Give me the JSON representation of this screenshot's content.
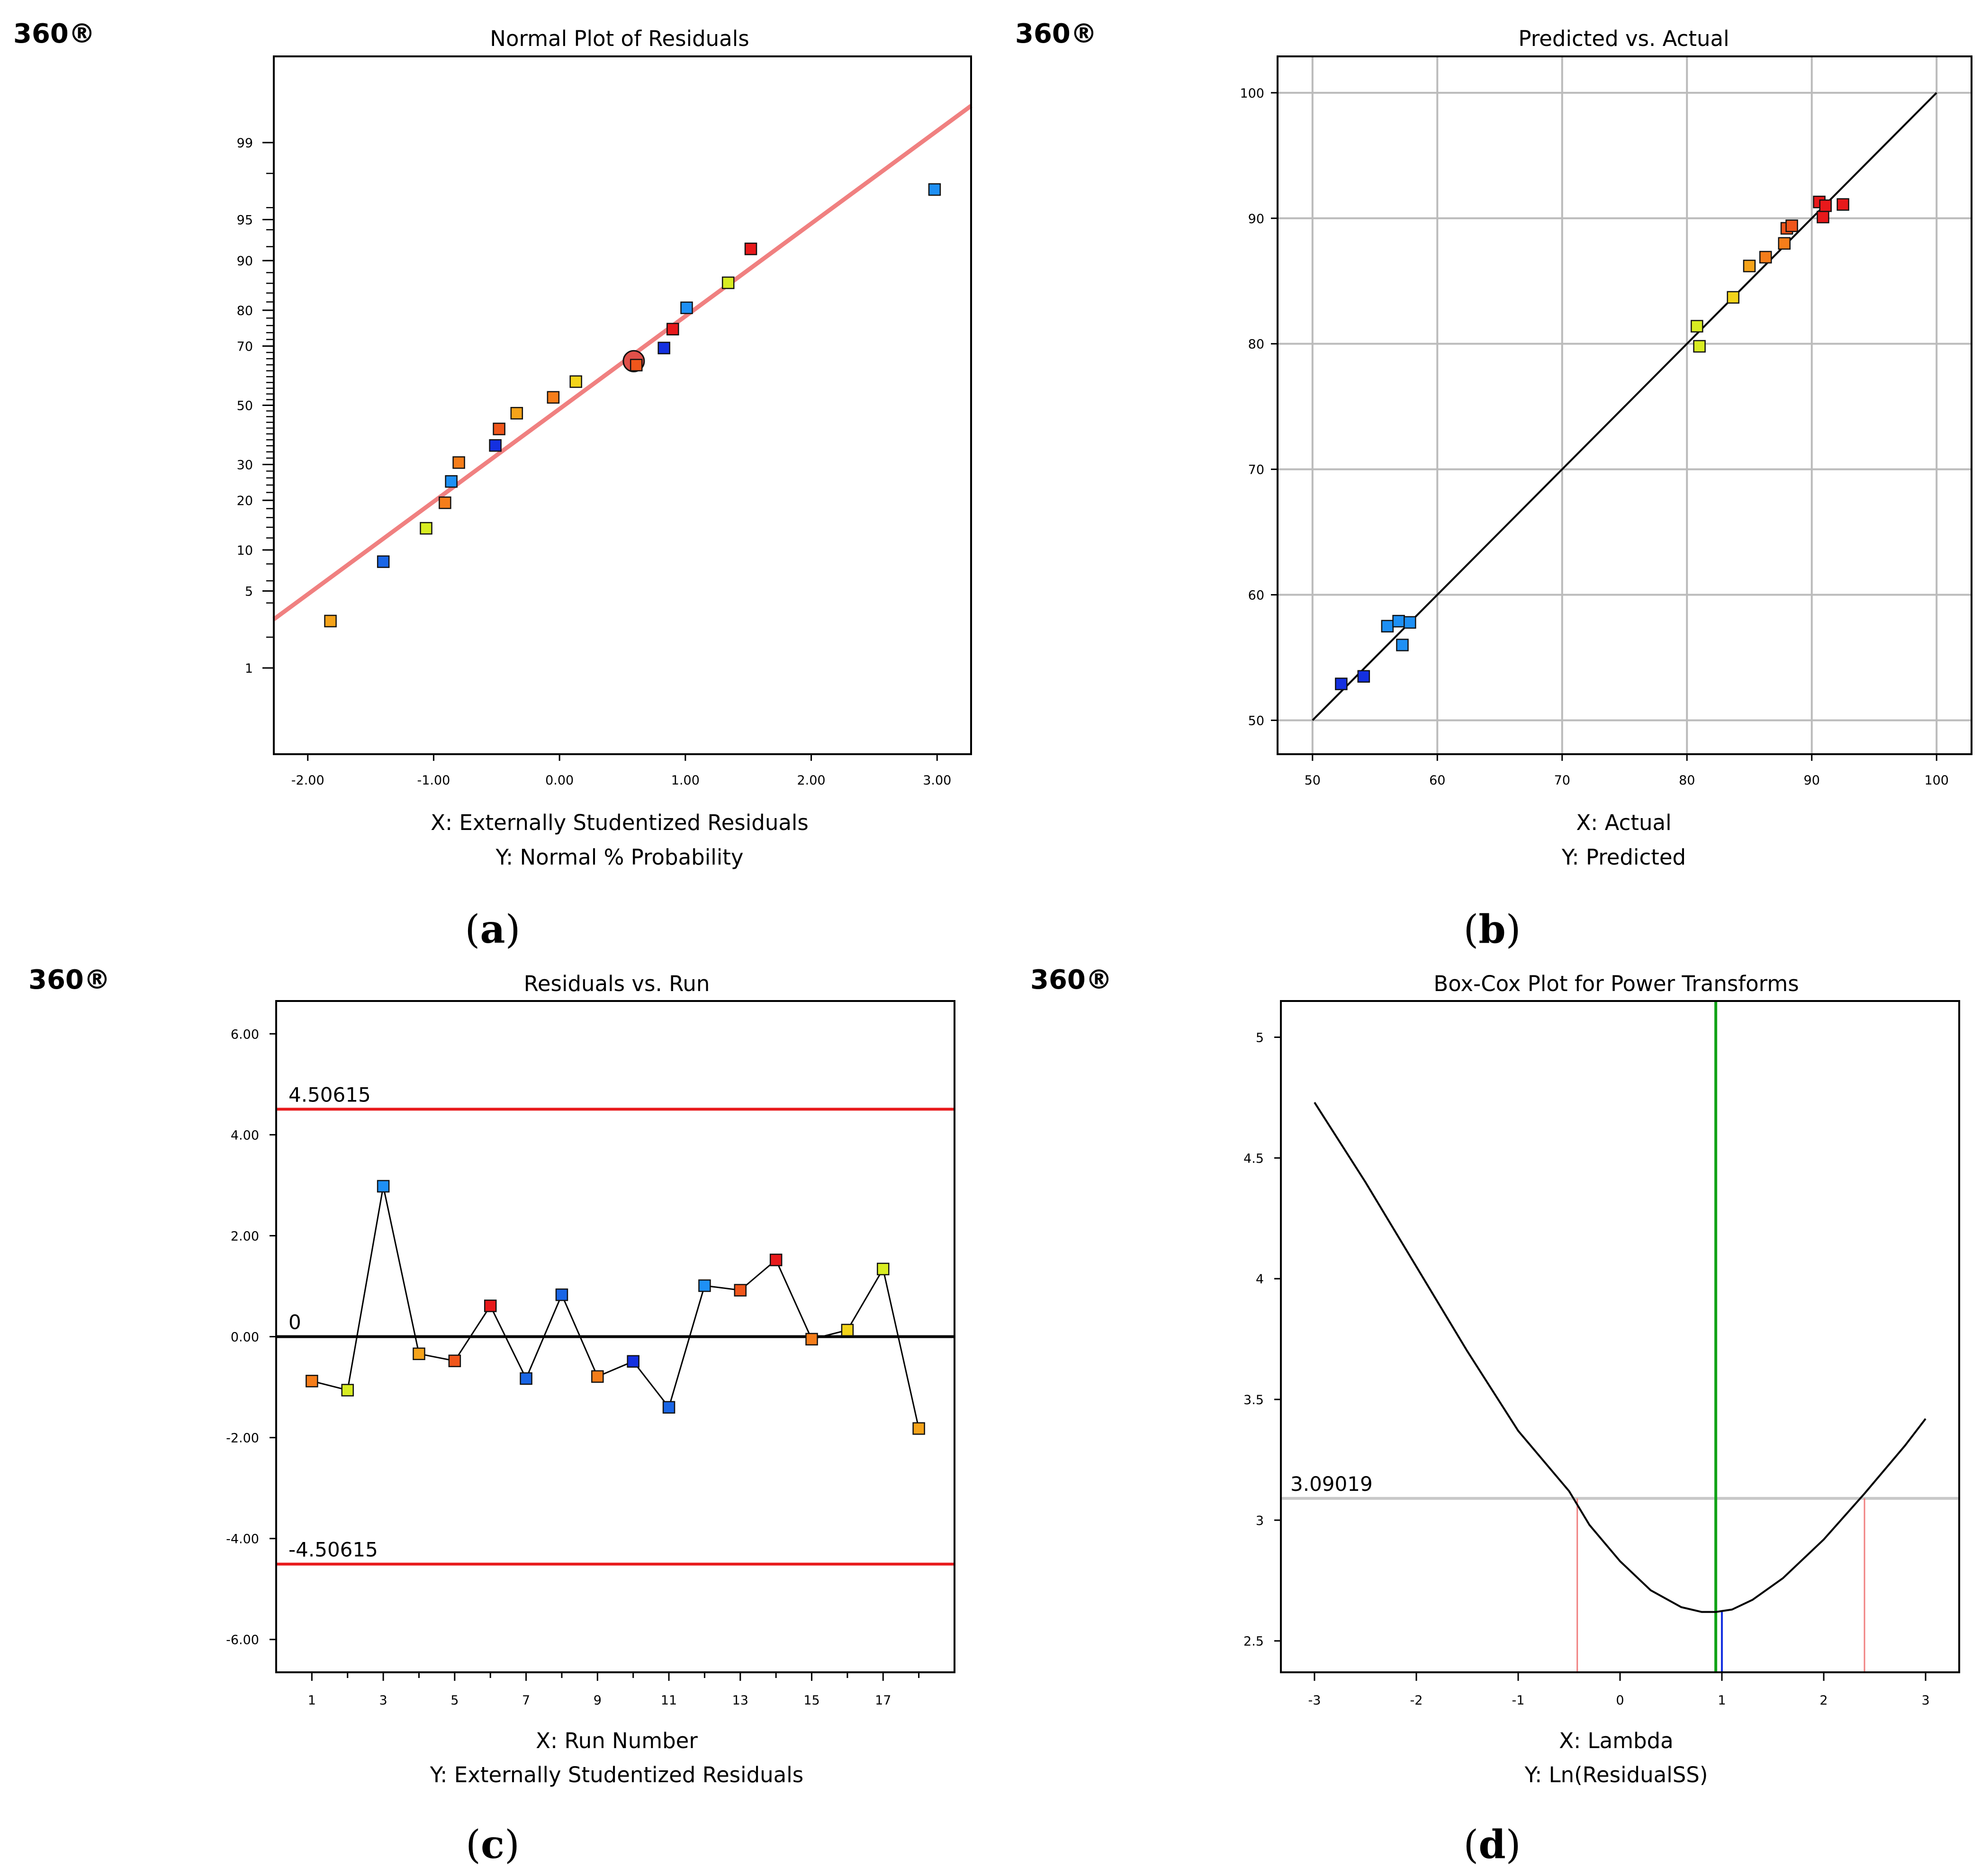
{
  "figure": {
    "brand_label": "360®",
    "panel_captions": [
      "(a)",
      "(b)",
      "(c)",
      "(d)"
    ]
  },
  "colors": {
    "red": "#e8191b",
    "orange_red": "#f0561b",
    "orange": "#f57d1a",
    "amber": "#f5a31a",
    "yellow": "#f3d41a",
    "lime": "#d8ec22",
    "sky": "#1e90f5",
    "azure": "#1a66e6",
    "blue": "#1430e0",
    "fit_line": "#f08080",
    "limit_red": "#e8191b",
    "grid": "#bbbbbb",
    "lambda_green": "#11a317",
    "lambda_blue": "#1430e0",
    "ci_pink": "#f08080",
    "threshold_gray": "#c8c8c8"
  },
  "chart_data": [
    {
      "id": "normal_plot",
      "type": "scatter",
      "caption": "(a)",
      "title": "Normal Plot of Residuals",
      "xlabel": "X: Externally Studentized Residuals",
      "ylabel": "Y: Normal % Probability",
      "xlim": [
        -2.27,
        3.27
      ],
      "x_ticks": [
        -2,
        -1,
        0,
        1,
        2,
        3
      ],
      "x_tick_labels": [
        "-2.00",
        "-1.00",
        "0.00",
        "1.00",
        "2.00",
        "3.00"
      ],
      "ylim_probability": [
        0.1,
        99.9
      ],
      "y_ticks": [
        1,
        5,
        10,
        20,
        30,
        50,
        70,
        80,
        90,
        95,
        99
      ],
      "y_tick_labels": [
        "1",
        "5",
        "10",
        "20",
        "30",
        "50",
        "70",
        "80",
        "90",
        "95",
        "99"
      ],
      "fit_line": {
        "x": [
          -2.27,
          3.27
        ],
        "y": [
          2.9,
          99.6
        ]
      },
      "highlight_point": {
        "x": 0.59,
        "y": 65.2
      },
      "points": [
        {
          "x": -1.82,
          "y": 2.8,
          "color": "amber"
        },
        {
          "x": -1.4,
          "y": 8.3,
          "color": "azure"
        },
        {
          "x": -1.06,
          "y": 13.8,
          "color": "lime"
        },
        {
          "x": -0.91,
          "y": 19.4,
          "color": "orange"
        },
        {
          "x": -0.86,
          "y": 25.0,
          "color": "sky"
        },
        {
          "x": -0.8,
          "y": 30.6,
          "color": "orange"
        },
        {
          "x": -0.51,
          "y": 36.1,
          "color": "blue"
        },
        {
          "x": -0.48,
          "y": 41.7,
          "color": "orange_red"
        },
        {
          "x": -0.34,
          "y": 47.2,
          "color": "amber"
        },
        {
          "x": -0.05,
          "y": 52.8,
          "color": "orange"
        },
        {
          "x": 0.13,
          "y": 58.3,
          "color": "yellow"
        },
        {
          "x": 0.61,
          "y": 63.9,
          "color": "orange_red"
        },
        {
          "x": 0.83,
          "y": 69.4,
          "color": "blue"
        },
        {
          "x": 0.9,
          "y": 75.0,
          "color": "red"
        },
        {
          "x": 1.01,
          "y": 80.6,
          "color": "sky"
        },
        {
          "x": 1.34,
          "y": 86.1,
          "color": "lime"
        },
        {
          "x": 1.52,
          "y": 91.7,
          "color": "red"
        },
        {
          "x": 2.98,
          "y": 97.2,
          "color": "sky"
        }
      ]
    },
    {
      "id": "predicted_vs_actual",
      "type": "scatter",
      "caption": "(b)",
      "title": "Predicted vs. Actual",
      "xlabel": "X: Actual",
      "ylabel": "Y: Predicted",
      "xlim": [
        47.2,
        102.8
      ],
      "ylim": [
        47.3,
        102.9
      ],
      "x_ticks": [
        50,
        60,
        70,
        80,
        90,
        100
      ],
      "y_ticks": [
        50,
        60,
        70,
        80,
        90,
        100
      ],
      "grid": true,
      "reference_line": {
        "x": [
          50,
          100
        ],
        "y": [
          50,
          100
        ]
      },
      "points": [
        {
          "x": 52.3,
          "y": 52.9,
          "color": "blue"
        },
        {
          "x": 54.1,
          "y": 53.5,
          "color": "blue"
        },
        {
          "x": 56.0,
          "y": 57.5,
          "color": "sky"
        },
        {
          "x": 56.9,
          "y": 57.9,
          "color": "sky"
        },
        {
          "x": 57.8,
          "y": 57.8,
          "color": "sky"
        },
        {
          "x": 57.2,
          "y": 56.0,
          "color": "sky"
        },
        {
          "x": 80.8,
          "y": 81.4,
          "color": "lime"
        },
        {
          "x": 81.0,
          "y": 79.8,
          "color": "lime"
        },
        {
          "x": 83.7,
          "y": 83.7,
          "color": "yellow"
        },
        {
          "x": 85.0,
          "y": 86.2,
          "color": "amber"
        },
        {
          "x": 86.3,
          "y": 86.9,
          "color": "orange"
        },
        {
          "x": 87.8,
          "y": 88.0,
          "color": "orange"
        },
        {
          "x": 88.0,
          "y": 89.2,
          "color": "orange_red"
        },
        {
          "x": 88.4,
          "y": 89.4,
          "color": "orange_red"
        },
        {
          "x": 90.6,
          "y": 91.3,
          "color": "red"
        },
        {
          "x": 90.9,
          "y": 90.1,
          "color": "red"
        },
        {
          "x": 91.1,
          "y": 91.0,
          "color": "red"
        },
        {
          "x": 92.5,
          "y": 91.1,
          "color": "red"
        }
      ]
    },
    {
      "id": "residuals_vs_run",
      "type": "line",
      "caption": "(c)",
      "title": "Residuals vs. Run",
      "xlabel": "X: Run Number",
      "ylabel": "Y: Externally Studentized Residuals",
      "xlim": [
        0,
        19
      ],
      "ylim": [
        -6.65,
        6.65
      ],
      "x_ticks": [
        1,
        3,
        5,
        7,
        9,
        11,
        13,
        15,
        17
      ],
      "x_minor_ticks": [
        2,
        4,
        6,
        8,
        10,
        12,
        14,
        16,
        18
      ],
      "y_ticks": [
        -6,
        -4,
        -2,
        0,
        2,
        4,
        6
      ],
      "y_tick_labels": [
        "-6.00",
        "-4.00",
        "-2.00",
        "0.00",
        "2.00",
        "4.00",
        "6.00"
      ],
      "limits": {
        "upper": 4.50615,
        "lower": -4.50615,
        "upper_label": "4.50615",
        "lower_label": "-4.50615"
      },
      "zero_label": "0",
      "x": [
        1,
        2,
        3,
        4,
        5,
        6,
        7,
        8,
        9,
        10,
        11,
        12,
        13,
        14,
        15,
        16,
        17,
        18
      ],
      "values": [
        -0.88,
        -1.06,
        2.98,
        -0.34,
        -0.48,
        0.61,
        -0.83,
        0.83,
        -0.79,
        -0.49,
        -1.4,
        1.01,
        0.92,
        1.52,
        -0.05,
        0.13,
        1.34,
        -1.82
      ],
      "colors": [
        "orange",
        "lime",
        "sky",
        "amber",
        "orange_red",
        "red",
        "azure",
        "azure",
        "orange",
        "blue",
        "azure",
        "sky",
        "orange_red",
        "red",
        "orange",
        "yellow",
        "lime",
        "amber"
      ]
    },
    {
      "id": "box_cox",
      "type": "line",
      "caption": "(d)",
      "title": "Box-Cox Plot for Power Transforms",
      "xlabel": "X: Lambda",
      "ylabel": "Y: Ln(ResidualSS)",
      "xlim": [
        -3.33,
        3.33
      ],
      "ylim": [
        2.37,
        5.15
      ],
      "x_ticks": [
        -3,
        -2,
        -1,
        0,
        1,
        2,
        3
      ],
      "y_ticks": [
        2.5,
        3,
        3.5,
        4,
        4.5,
        5
      ],
      "y_tick_labels": [
        "2.5",
        "3",
        "3.5",
        "4",
        "4.5",
        "5"
      ],
      "threshold": 3.09019,
      "threshold_label": "3.09019",
      "best_lambda": 0.94,
      "current_lambda": 1.0,
      "ci": [
        -0.42,
        2.4
      ],
      "curve": {
        "x": [
          -3.0,
          -2.5,
          -2.0,
          -1.5,
          -1.0,
          -0.5,
          -0.3,
          0.0,
          0.3,
          0.6,
          0.8,
          0.94,
          1.1,
          1.3,
          1.6,
          2.0,
          2.4,
          2.8,
          3.0
        ],
        "y": [
          4.73,
          4.4,
          4.05,
          3.7,
          3.37,
          3.12,
          2.98,
          2.83,
          2.71,
          2.64,
          2.62,
          2.62,
          2.63,
          2.67,
          2.76,
          2.92,
          3.11,
          3.31,
          3.42
        ]
      }
    }
  ]
}
